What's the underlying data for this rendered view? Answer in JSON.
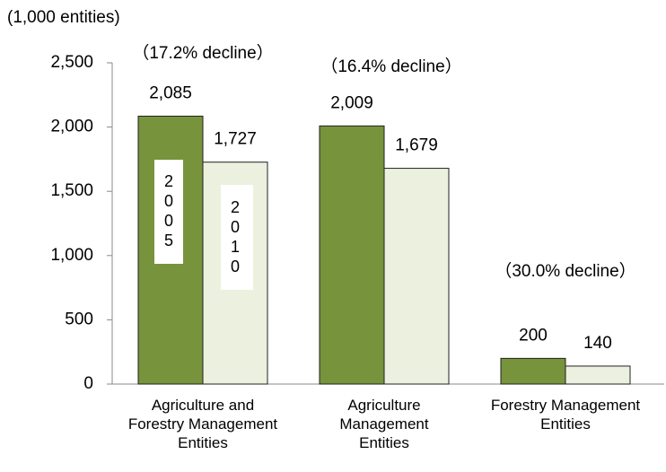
{
  "chart_data": {
    "type": "bar",
    "y_axis_label": "(1,000 entities)",
    "categories": [
      "Agriculture and Forestry Management Entities",
      "Agriculture Management Entities",
      "Forestry Management Entities"
    ],
    "series": [
      {
        "name": "2005",
        "color": "#77933c",
        "values": [
          2085,
          2009,
          200
        ],
        "value_labels": [
          "2,085",
          "2,009",
          "200"
        ]
      },
      {
        "name": "2010",
        "color": "#ebf1de",
        "values": [
          1727,
          1679,
          140
        ],
        "value_labels": [
          "1,727",
          "1,679",
          "140"
        ]
      }
    ],
    "annotations": [
      "（17.2% decline）",
      "（16.4% decline）",
      "（30.0% decline）"
    ],
    "ylim": [
      0,
      2500
    ],
    "yticks": [
      0,
      500,
      {
        "value": 1000,
        "label": "1,000"
      },
      {
        "value": 1500,
        "label": "1,500"
      },
      {
        "value": 2000,
        "label": "2,000"
      },
      {
        "value": 2500,
        "label": "2,500"
      }
    ],
    "grid": false
  }
}
